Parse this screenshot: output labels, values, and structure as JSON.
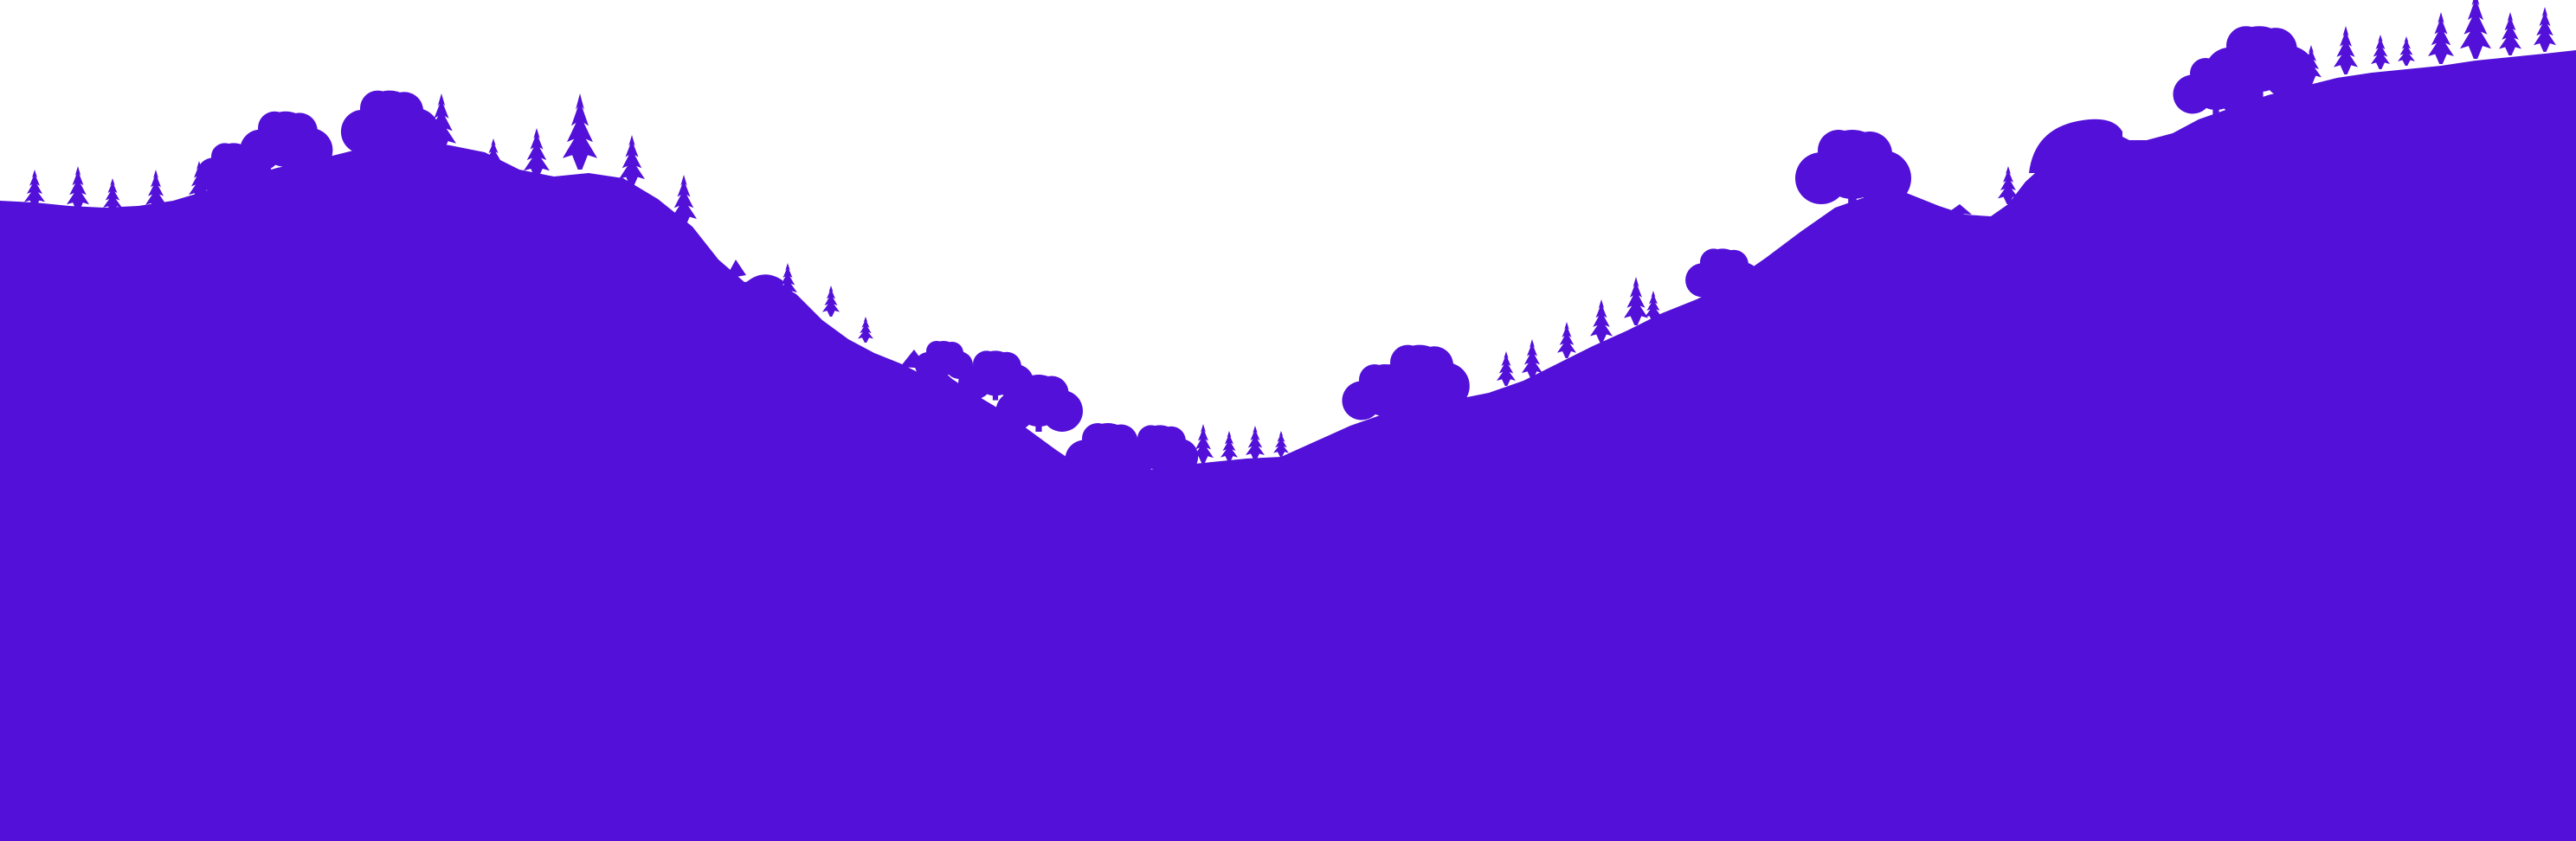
{
  "scene": {
    "background_color": "#ffffff",
    "silhouette_color": "#5210d8",
    "subject": "forest-ridge-silhouette"
  }
}
